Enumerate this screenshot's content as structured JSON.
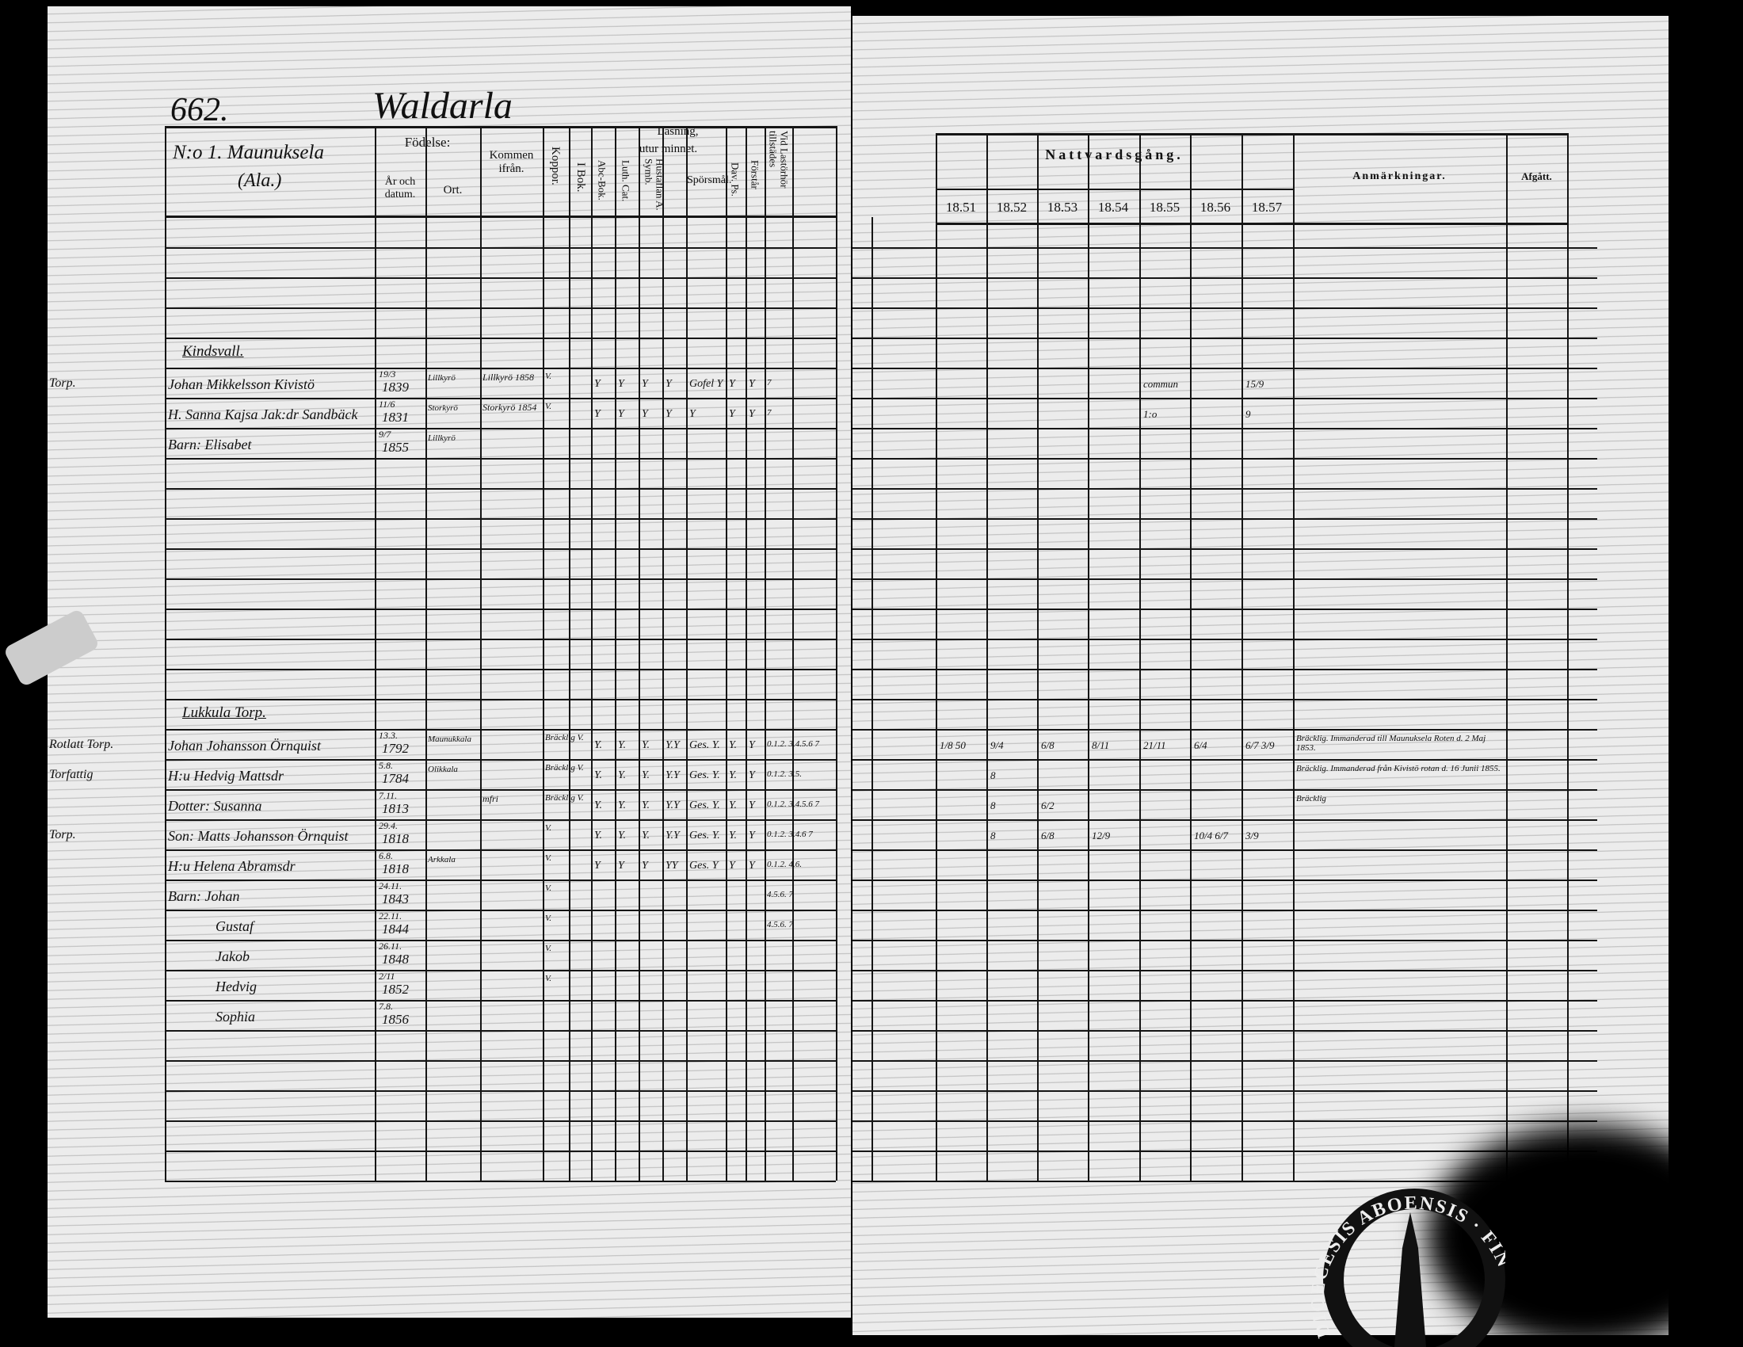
{
  "header": {
    "page_number": "662.",
    "village": "Waldarla",
    "homestead": "N:o 1. Maunuksela",
    "homestead_note": "(Ala.)"
  },
  "left_columns": {
    "fodelse": "Födelse:",
    "ar_och_datum": "År och datum.",
    "ort": "Ort.",
    "kommen_ifran": "Kommen ifrån.",
    "koppor": "Koppor.",
    "i_bok": "I Bok.",
    "lasning": "Läsning,",
    "utur_minnet": "utur minnet.",
    "abc_bok": "Abc-Bok.",
    "luth_cat": "Luth. Cat.",
    "hustaflan": "Hustaflan A. Symb.",
    "sporsmal": "Spörsmål.",
    "dav_ps": "Dav. Ps.",
    "forstar": "Förstår",
    "vid_lasforhor": "Vid Lastörhör tillstädes"
  },
  "right_columns": {
    "nattvardsgang": "Nattvardsgång.",
    "years": [
      "18.51",
      "18.52",
      "18.53",
      "18.54",
      "18.55",
      "18.56",
      "18.57"
    ],
    "anmarkningar": "Anmärkningar.",
    "afgatt": "Afgått."
  },
  "groups": [
    {
      "subheading": "Kindsvall.",
      "rows": [
        {
          "margin": "Torp.",
          "name": "Johan Mikkelsson Kivistö",
          "date": "19/3",
          "year": "1839",
          "ort": "Lillkyrö",
          "kommen": "Lillkyrö 1858",
          "koppor": "V.",
          "marks": [
            "Y",
            "Y",
            "Y",
            "Y",
            "Gofel Y",
            "Y",
            "Y"
          ],
          "lasforhor": "7",
          "nattvard": [
            "",
            "",
            "",
            "",
            "commun",
            "",
            "15/9"
          ],
          "remark": ""
        },
        {
          "margin": "",
          "name": "H. Sanna Kajsa Jak:dr Sandbäck",
          "date": "11/6",
          "year": "1831",
          "ort": "Storkyrö",
          "kommen": "Storkyrö 1854",
          "koppor": "V.",
          "marks": [
            "Y",
            "Y",
            "Y",
            "Y",
            "Y",
            "Y",
            "Y"
          ],
          "lasforhor": "7",
          "nattvard": [
            "",
            "",
            "",
            "",
            "1:o",
            "",
            "9"
          ],
          "remark": ""
        },
        {
          "margin": "",
          "name": "Barn: Elisabet",
          "date": "9/7",
          "year": "1855",
          "ort": "Lillkyrö",
          "kommen": "",
          "koppor": "",
          "marks": [
            "",
            "",
            "",
            "",
            "",
            "",
            ""
          ],
          "lasforhor": "",
          "nattvard": [
            "",
            "",
            "",
            "",
            "",
            "",
            ""
          ],
          "remark": ""
        }
      ]
    },
    {
      "subheading": "Lukkula Torp.",
      "rows": [
        {
          "margin": "Rotlatt Torp.",
          "name": "Johan Johansson Örnquist",
          "date": "13.3.",
          "year": "1792",
          "ort": "Maunukkala",
          "kommen": "",
          "koppor": "Bräcklig V.",
          "marks": [
            "Y.",
            "Y.",
            "Y.",
            "Y.Y",
            "Ges. Y.",
            "Y.",
            "Y"
          ],
          "lasforhor": "0.1.2. 3.4.5.6 7",
          "nattvard": [
            "1/8 50",
            "9/4",
            "6/8",
            "8/11",
            "21/11",
            "6/4",
            "6/7 3/9"
          ],
          "remark": "Bräcklig. Immanderad till Maunuksela Roten d. 2 Maj 1853."
        },
        {
          "margin": "Torfattig",
          "name": "H:u Hedvig Mattsdr",
          "date": "5.8.",
          "year": "1784",
          "ort": "Olikkala",
          "kommen": "",
          "koppor": "Bräcklig V.",
          "marks": [
            "Y.",
            "Y.",
            "Y.",
            "Y.Y",
            "Ges. Y.",
            "Y.",
            "Y"
          ],
          "lasforhor": "0.1.2. 3.5.",
          "nattvard": [
            "",
            "8",
            "",
            "",
            "",
            "",
            ""
          ],
          "remark": "Bräcklig. Immanderad från Kivistö rotan d. 16 Junii 1855."
        },
        {
          "margin": "",
          "name": "Dotter: Susanna",
          "date": "7.11.",
          "year": "1813",
          "ort": "",
          "kommen": "mfri",
          "koppor": "Bräcklig V.",
          "marks": [
            "Y.",
            "Y.",
            "Y.",
            "Y.Y",
            "Ges. Y.",
            "Y.",
            "Y"
          ],
          "lasforhor": "0.1.2. 3.4.5.6 7",
          "nattvard": [
            "",
            "8",
            "6/2",
            "",
            "",
            "",
            ""
          ],
          "remark": "Bräcklig"
        },
        {
          "margin": "Torp.",
          "name": "Son: Matts Johansson Örnquist",
          "date": "29.4.",
          "year": "1818",
          "ort": "",
          "kommen": "",
          "koppor": "V.",
          "marks": [
            "Y.",
            "Y.",
            "Y.",
            "Y.Y",
            "Ges. Y.",
            "Y.",
            "Y"
          ],
          "lasforhor": "0.1.2. 3.4.6 7",
          "nattvard": [
            "",
            "8",
            "6/8",
            "12/9",
            "",
            "10/4 6/7",
            "3/9"
          ],
          "remark": ""
        },
        {
          "margin": "",
          "name": "H:u Helena Abramsdr",
          "date": "6.8.",
          "year": "1818",
          "ort": "Arkkala",
          "kommen": "",
          "koppor": "V.",
          "marks": [
            "Y",
            "Y",
            "Y",
            "YY",
            "Ges. Y",
            "Y",
            "Y"
          ],
          "lasforhor": "0.1.2. 4.6.",
          "nattvard": [
            "",
            "",
            "",
            "",
            "",
            "",
            ""
          ],
          "remark": ""
        },
        {
          "margin": "",
          "name": "Barn: Johan",
          "date": "24.11.",
          "year": "1843",
          "ort": "",
          "kommen": "",
          "koppor": "V.",
          "marks": [
            "",
            "",
            "",
            "",
            "",
            "",
            ""
          ],
          "lasforhor": "4.5.6. 7",
          "nattvard": [
            "",
            "",
            "",
            "",
            "",
            "",
            ""
          ],
          "remark": ""
        },
        {
          "margin": "",
          "name": "Gustaf",
          "date": "22.11.",
          "year": "1844",
          "ort": "",
          "kommen": "",
          "koppor": "V.",
          "marks": [
            "",
            "",
            "",
            "",
            "",
            "",
            ""
          ],
          "lasforhor": "4.5.6. 7",
          "nattvard": [
            "",
            "",
            "",
            "",
            "",
            "",
            ""
          ],
          "remark": ""
        },
        {
          "margin": "",
          "name": "Jakob",
          "date": "26.11.",
          "year": "1848",
          "ort": "",
          "kommen": "",
          "koppor": "V.",
          "marks": [
            "",
            "",
            "",
            "",
            "",
            "",
            ""
          ],
          "lasforhor": "",
          "nattvard": [
            "",
            "",
            "",
            "",
            "",
            "",
            ""
          ],
          "remark": ""
        },
        {
          "margin": "",
          "name": "Hedvig",
          "date": "2/11",
          "year": "1852",
          "ort": "",
          "kommen": "",
          "koppor": "V.",
          "marks": [
            "",
            "",
            "",
            "",
            "",
            "",
            ""
          ],
          "lasforhor": "",
          "nattvard": [
            "",
            "",
            "",
            "",
            "",
            "",
            ""
          ],
          "remark": ""
        },
        {
          "margin": "",
          "name": "Sophia",
          "date": "7.8.",
          "year": "1856",
          "ort": "",
          "kommen": "",
          "koppor": "",
          "marks": [
            "",
            "",
            "",
            "",
            "",
            "",
            ""
          ],
          "lasforhor": "",
          "nattvard": [
            "",
            "",
            "",
            "",
            "",
            "",
            ""
          ],
          "remark": ""
        }
      ]
    }
  ],
  "stamp": {
    "text": "DIOECESIS ABOENSIS · FINL."
  },
  "colors": {
    "paper": "#ececec",
    "ink": "#111111",
    "background": "#000000"
  }
}
